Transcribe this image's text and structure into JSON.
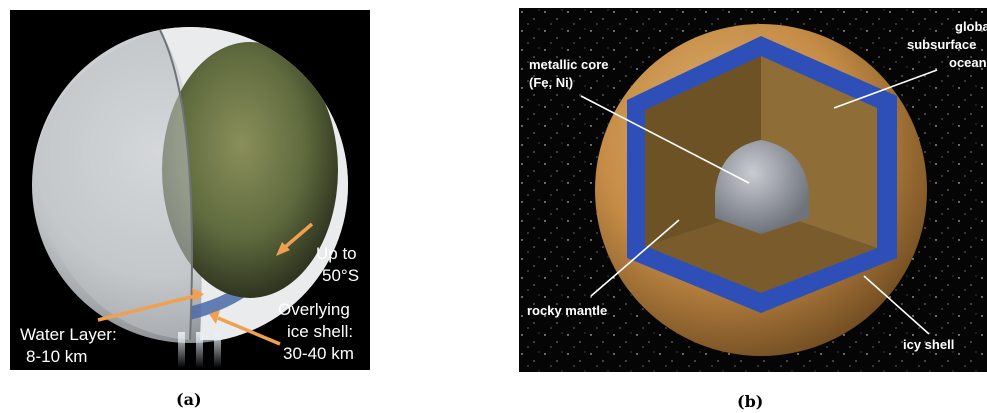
{
  "panel_a": {
    "caption": "(a)",
    "labels": {
      "up_to": "Up to",
      "latitude": "50°S",
      "overlying": "Overlying",
      "ice_shell": "ice shell:",
      "ice_thickness": "30-40 km",
      "water_layer": "Water Layer:",
      "water_thickness": "8-10 km"
    },
    "colors": {
      "ice": "#d9dcde",
      "water": "#4a6aa8",
      "core": "#5c6a3c",
      "arrow": "#f0a050"
    }
  },
  "panel_b": {
    "caption": "(b)",
    "labels": {
      "core_line1": "metallic core",
      "core_line2": "(Fe, Ni)",
      "ocean_line1": "global",
      "ocean_line2": "subsurface",
      "ocean_line3": "ocean",
      "mantle": "rocky mantle",
      "icy_shell": "icy shell"
    },
    "colors": {
      "surface": "#c8914a",
      "ocean": "#2f4fb8",
      "mantle": "#8a6a35",
      "core": "#9a9ea6"
    }
  }
}
